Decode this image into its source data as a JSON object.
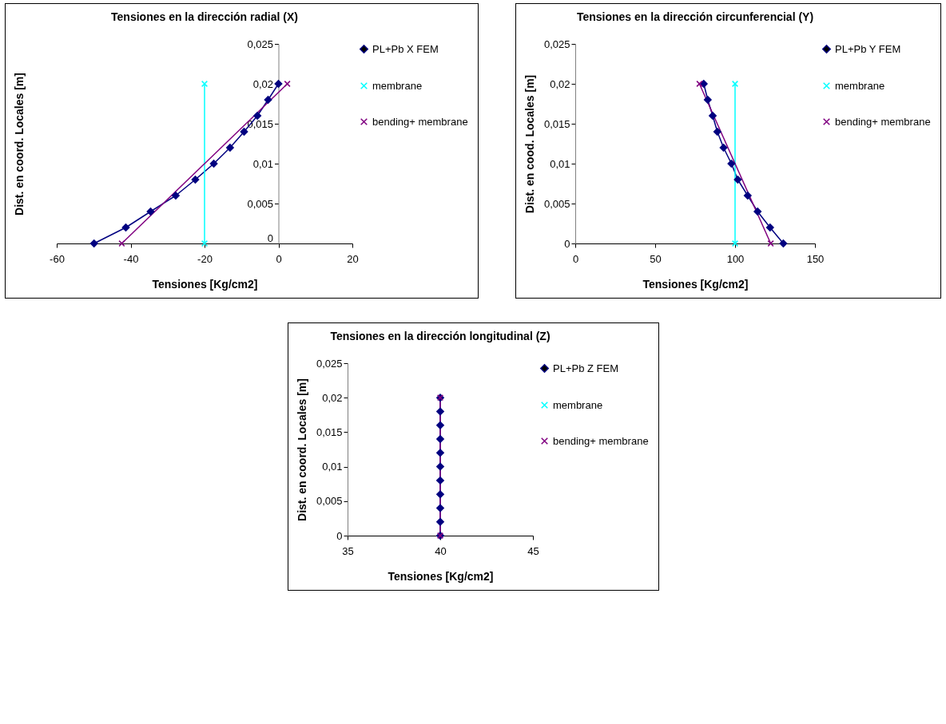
{
  "chart_data": [
    {
      "type": "line",
      "title": "Tensiones en la dirección radial (X)",
      "xlabel": "Tensiones [Kg/cm2]",
      "ylabel": "Dist. en coord. Locales [m]",
      "xlim": [
        -60,
        20
      ],
      "xticks": [
        -60,
        -40,
        -20,
        0,
        20
      ],
      "ylim": [
        0,
        0.025
      ],
      "yticks": [
        {
          "value": 0,
          "label": "0"
        },
        {
          "value": 0.005,
          "label": "0,005"
        },
        {
          "value": 0.01,
          "label": "0,01"
        },
        {
          "value": 0.015,
          "label": "0,015"
        },
        {
          "value": 0.02,
          "label": "0,02"
        },
        {
          "value": 0.025,
          "label": "0,025"
        }
      ],
      "legend": "right",
      "grid": false,
      "series": [
        {
          "name": "PL+Pb X FEM",
          "color": "#000080",
          "marker": "diamond",
          "x": [
            -49.9,
            -41.3,
            -34.6,
            -27.8,
            -22.5,
            -17.5,
            -13.1,
            -9.3,
            -5.7,
            -2.8,
            0
          ],
          "values": [
            0,
            0.002,
            0.004,
            0.006,
            0.008,
            0.01,
            0.012,
            0.014,
            0.016,
            0.018,
            0.02
          ]
        },
        {
          "name": "membrane",
          "color": "#00ffff",
          "marker": "cross",
          "x": [
            -20,
            -20
          ],
          "values": [
            0,
            0.02
          ]
        },
        {
          "name": "bending+ membrane",
          "color": "#800080",
          "marker": "cross",
          "x": [
            -42.4,
            2.4
          ],
          "values": [
            0,
            0.02
          ]
        }
      ]
    },
    {
      "type": "line",
      "title": "Tensiones en la dirección circunferencial (Y)",
      "xlabel": "Tensiones [Kg/cm2]",
      "ylabel": "Dist. en cood. Locales [m]",
      "xlim": [
        0,
        150
      ],
      "xticks": [
        0,
        50,
        100,
        150
      ],
      "ylim": [
        0,
        0.025
      ],
      "yticks": [
        {
          "value": 0,
          "label": "0"
        },
        {
          "value": 0.005,
          "label": "0,005"
        },
        {
          "value": 0.01,
          "label": "0,01"
        },
        {
          "value": 0.015,
          "label": "0,015"
        },
        {
          "value": 0.02,
          "label": "0,02"
        },
        {
          "value": 0.025,
          "label": "0,025"
        }
      ],
      "legend": "right",
      "grid": false,
      "series": [
        {
          "name": "PL+Pb Y FEM",
          "color": "#000080",
          "marker": "diamond",
          "x": [
            130.2,
            121.9,
            114.1,
            107.9,
            101.7,
            97.7,
            92.8,
            88.9,
            86.0,
            82.9,
            80.4
          ],
          "values": [
            0,
            0.002,
            0.004,
            0.006,
            0.008,
            0.01,
            0.012,
            0.014,
            0.016,
            0.018,
            0.02
          ]
        },
        {
          "name": "membrane",
          "color": "#00ffff",
          "marker": "cross",
          "x": [
            100,
            100
          ],
          "values": [
            0,
            0.02
          ]
        },
        {
          "name": "bending+ membrane",
          "color": "#800080",
          "marker": "cross",
          "x": [
            122.3,
            77.7
          ],
          "values": [
            0,
            0.02
          ]
        }
      ]
    },
    {
      "type": "line",
      "title": "Tensiones en la dirección longitudinal (Z)",
      "xlabel": "Tensiones [Kg/cm2]",
      "ylabel": "Dist. en coord. Locales [m]",
      "xlim": [
        35,
        45
      ],
      "xticks": [
        35,
        40,
        45
      ],
      "ylim": [
        0,
        0.025
      ],
      "yticks": [
        {
          "value": 0,
          "label": "0"
        },
        {
          "value": 0.005,
          "label": "0,005"
        },
        {
          "value": 0.01,
          "label": "0,01"
        },
        {
          "value": 0.015,
          "label": "0,015"
        },
        {
          "value": 0.02,
          "label": "0,02"
        },
        {
          "value": 0.025,
          "label": "0,025"
        }
      ],
      "legend": "right",
      "grid": false,
      "series": [
        {
          "name": "PL+Pb Z FEM",
          "color": "#000080",
          "marker": "diamond",
          "x": [
            40,
            40,
            40,
            40,
            40,
            40,
            40,
            40,
            40,
            40,
            40
          ],
          "values": [
            0,
            0.002,
            0.004,
            0.006,
            0.008,
            0.01,
            0.012,
            0.014,
            0.016,
            0.018,
            0.02
          ]
        },
        {
          "name": "membrane",
          "color": "#00ffff",
          "marker": "cross",
          "x": [
            null,
            null
          ],
          "values": [
            null,
            null
          ]
        },
        {
          "name": "bending+ membrane",
          "color": "#800080",
          "marker": "cross",
          "x": [
            40,
            40
          ],
          "values": [
            0,
            0.02
          ]
        }
      ]
    }
  ]
}
